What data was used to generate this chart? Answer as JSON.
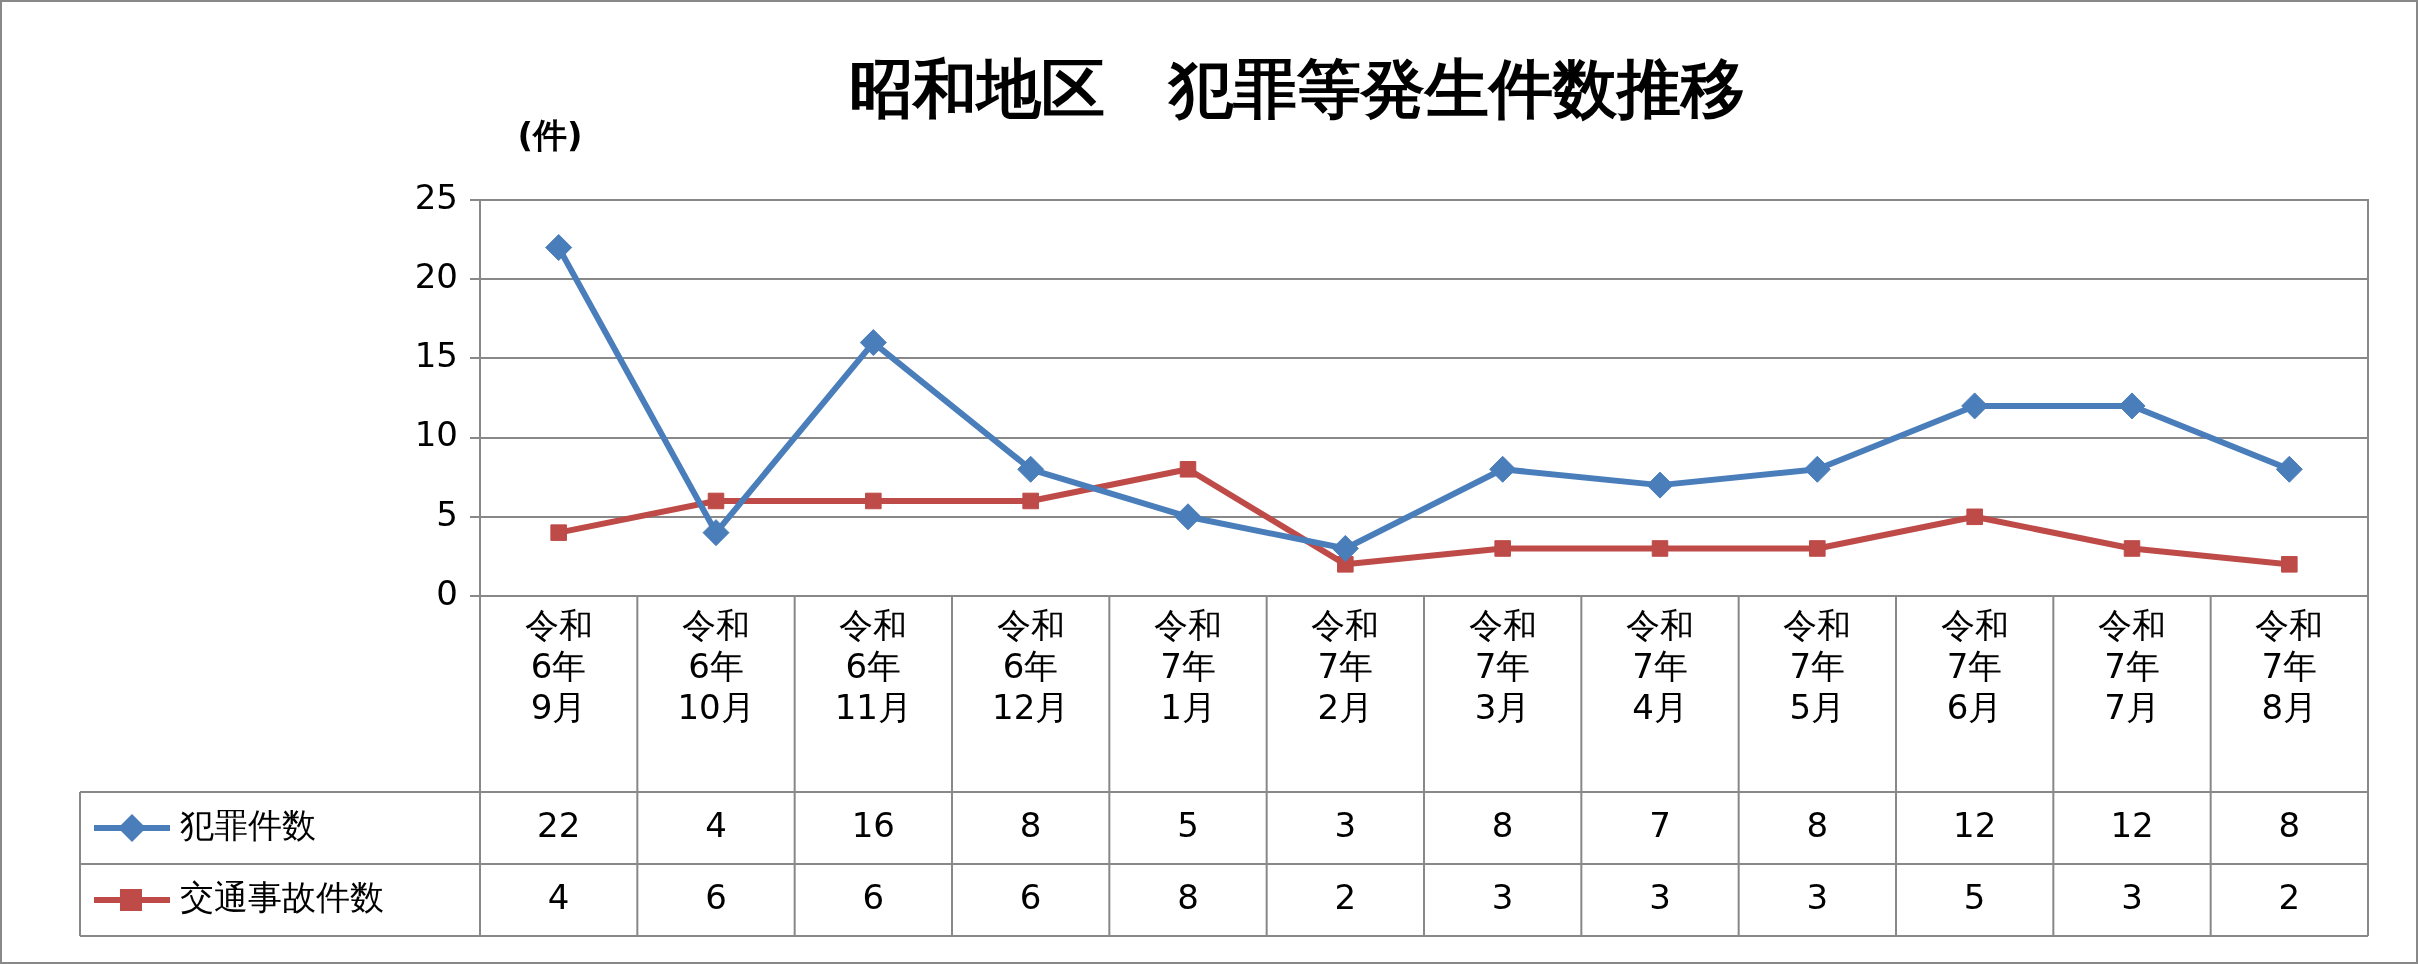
{
  "chart_data": {
    "type": "line",
    "title": "昭和地区　犯罪等発生件数推移",
    "ylabel": "(件)",
    "categories": [
      "令和\n6年\n9月",
      "令和\n6年\n10月",
      "令和\n6年\n11月",
      "令和\n6年\n12月",
      "令和\n7年\n1月",
      "令和\n7年\n2月",
      "令和\n7年\n3月",
      "令和\n7年\n4月",
      "令和\n7年\n5月",
      "令和\n7年\n6月",
      "令和\n7年\n7月",
      "令和\n7年\n8月"
    ],
    "series": [
      {
        "name": "犯罪件数",
        "color": "#4a7ebb",
        "marker": "diamond",
        "values": [
          22,
          4,
          16,
          8,
          5,
          3,
          8,
          7,
          8,
          12,
          12,
          8
        ]
      },
      {
        "name": "交通事故件数",
        "color": "#be4b48",
        "marker": "square",
        "values": [
          4,
          6,
          6,
          6,
          8,
          2,
          3,
          3,
          3,
          5,
          3,
          2
        ]
      }
    ],
    "ylim": [
      0,
      25
    ],
    "yticks": [
      0,
      5,
      10,
      15,
      20,
      25
    ],
    "grid": "y",
    "legend": "bottom",
    "data_labels": true,
    "line_style": "solid"
  }
}
